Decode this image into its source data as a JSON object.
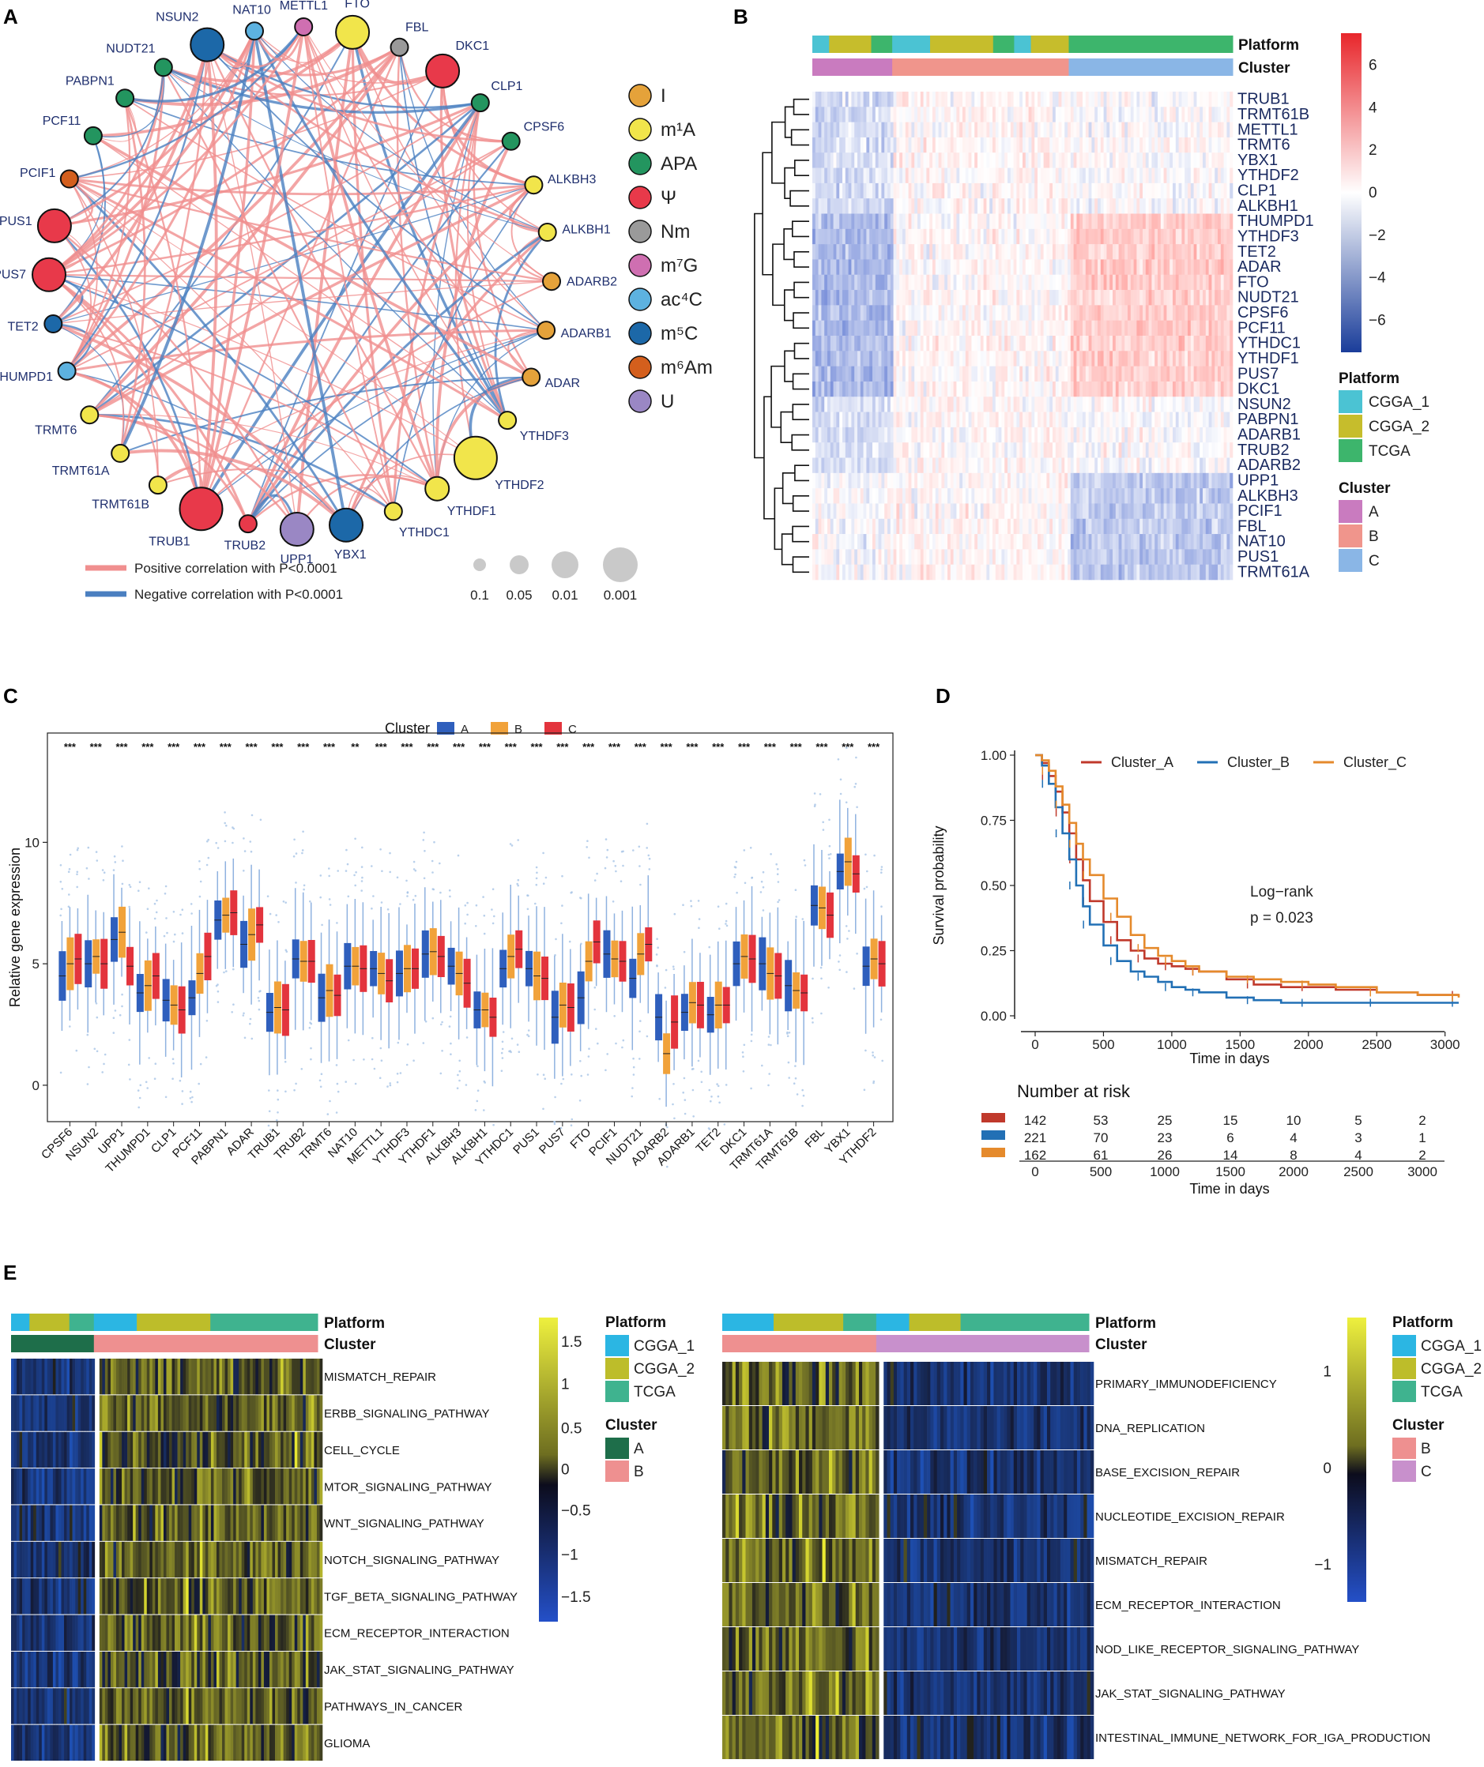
{
  "panels": {
    "A": "A",
    "B": "B",
    "C": "C",
    "D": "D",
    "E": "E"
  },
  "colors": {
    "pos": "#f08f8f",
    "neg": "#4a7fc0",
    "I": "#e5a23a",
    "m1A": "#f1e54b",
    "APA": "#23955f",
    "Psi": "#e8394a",
    "Nm": "#9a9a9a",
    "m7G": "#cf6fb1",
    "ac4C": "#5db2e0",
    "m5C": "#1c68a8",
    "m6Am": "#d45f1d",
    "U": "#9a87c4",
    "CGGA_1": "#4bc3d3",
    "CGGA_2": "#c6bd2c",
    "TCGA": "#3db56c",
    "clusterA": "#c97bbf",
    "clusterB": "#f0958c",
    "clusterC": "#8ab6e6",
    "boxA": "#2f5fbd",
    "boxB": "#f1a23a",
    "boxC": "#e3343d",
    "kmA": "#c0392b",
    "kmB": "#2270b5",
    "kmC": "#e58a2c",
    "E_CGGA_1": "#2bb6e3",
    "E_CGGA_2": "#bdbd2a",
    "E_TCGA": "#3fb38f",
    "E_A": "#1e6e4a",
    "E_B": "#ee9090",
    "E_C": "#c890cc"
  },
  "panelA": {
    "nodes": [
      {
        "name": "FTO",
        "type": "m1A",
        "size": 3
      },
      {
        "name": "FBL",
        "type": "Nm",
        "size": 1
      },
      {
        "name": "DKC1",
        "type": "Psi",
        "size": 3
      },
      {
        "name": "CLP1",
        "type": "APA",
        "size": 1
      },
      {
        "name": "CPSF6",
        "type": "APA",
        "size": 1
      },
      {
        "name": "ALKBH3",
        "type": "m1A",
        "size": 1
      },
      {
        "name": "ALKBH1",
        "type": "m1A",
        "size": 1
      },
      {
        "name": "ADARB2",
        "type": "I",
        "size": 1
      },
      {
        "name": "ADARB1",
        "type": "I",
        "size": 1
      },
      {
        "name": "ADAR",
        "type": "I",
        "size": 1
      },
      {
        "name": "YTHDF3",
        "type": "m1A",
        "size": 1
      },
      {
        "name": "YTHDF2",
        "type": "m1A",
        "size": 4
      },
      {
        "name": "YTHDF1",
        "type": "m1A",
        "size": 2
      },
      {
        "name": "YTHDC1",
        "type": "m1A",
        "size": 1
      },
      {
        "name": "YBX1",
        "type": "m5C",
        "size": 3
      },
      {
        "name": "UPP1",
        "type": "U",
        "size": 3
      },
      {
        "name": "TRUB2",
        "type": "Psi",
        "size": 1
      },
      {
        "name": "TRUB1",
        "type": "Psi",
        "size": 4
      },
      {
        "name": "TRMT61B",
        "type": "m1A",
        "size": 1
      },
      {
        "name": "TRMT61A",
        "type": "m1A",
        "size": 1
      },
      {
        "name": "TRMT6",
        "type": "m1A",
        "size": 1
      },
      {
        "name": "THUMPD1",
        "type": "ac4C",
        "size": 1
      },
      {
        "name": "TET2",
        "type": "m5C",
        "size": 1
      },
      {
        "name": "PUS7",
        "type": "Psi",
        "size": 3
      },
      {
        "name": "PUS1",
        "type": "Psi",
        "size": 3
      },
      {
        "name": "PCIF1",
        "type": "m6Am",
        "size": 1
      },
      {
        "name": "PCF11",
        "type": "APA",
        "size": 1
      },
      {
        "name": "PABPN1",
        "type": "APA",
        "size": 1
      },
      {
        "name": "NUDT21",
        "type": "APA",
        "size": 1
      },
      {
        "name": "NSUN2",
        "type": "m5C",
        "size": 3
      },
      {
        "name": "NAT10",
        "type": "ac4C",
        "size": 1
      },
      {
        "name": "METTL1",
        "type": "m7G",
        "size": 1
      }
    ],
    "legend": [
      {
        "key": "I",
        "label": "I"
      },
      {
        "key": "m1A",
        "label": "m¹A"
      },
      {
        "key": "APA",
        "label": "APA"
      },
      {
        "key": "Psi",
        "label": "Ψ"
      },
      {
        "key": "Nm",
        "label": "Nm"
      },
      {
        "key": "m7G",
        "label": "m⁷G"
      },
      {
        "key": "ac4C",
        "label": "ac⁴C"
      },
      {
        "key": "m5C",
        "label": "m⁵C"
      },
      {
        "key": "m6Am",
        "label": "m⁶Am"
      },
      {
        "key": "U",
        "label": "U"
      }
    ],
    "pos_label": "Positive correlation with P<0.0001",
    "neg_label": "Negative correlation with P<0.0001",
    "size_legend": [
      "0.1",
      "0.05",
      "0.01",
      "0.001"
    ]
  },
  "panelB": {
    "rows": [
      "TRUB1",
      "TRMT61B",
      "METTL1",
      "TRMT6",
      "YBX1",
      "YTHDF2",
      "CLP1",
      "ALKBH1",
      "THUMPD1",
      "YTHDF3",
      "TET2",
      "ADAR",
      "FTO",
      "NUDT21",
      "CPSF6",
      "PCF11",
      "YTHDC1",
      "YTHDF1",
      "PUS7",
      "DKC1",
      "NSUN2",
      "PABPN1",
      "ADARB1",
      "TRUB2",
      "ADARB2",
      "UPP1",
      "ALKBH3",
      "PCIF1",
      "FBL",
      "NAT10",
      "PUS1",
      "TRMT61A"
    ],
    "annot_platform": "Platform",
    "annot_cluster": "Cluster",
    "colorbar_ticks": [
      "6",
      "4",
      "2",
      "0",
      "−2",
      "−4",
      "−6"
    ],
    "legend_platform_title": "Platform",
    "legend_platform": [
      "CGGA_1",
      "CGGA_2",
      "TCGA"
    ],
    "legend_cluster_title": "Cluster",
    "legend_cluster": [
      "A",
      "B",
      "C"
    ]
  },
  "chart_data": [
    {
      "type": "box",
      "panel": "C",
      "title": "",
      "legend_title": "Cluster",
      "legend": [
        "A",
        "B",
        "C"
      ],
      "ylabel": "Relative gene expression",
      "ylim": [
        -1.5,
        14.5
      ],
      "yticks": [
        "0",
        "5",
        "10"
      ],
      "categories": [
        "CPSF6",
        "NSUN2",
        "UPP1",
        "THUMPD1",
        "CLP1",
        "PCF11",
        "PABPN1",
        "ADAR",
        "TRUB1",
        "TRUB2",
        "TRMT6",
        "NAT10",
        "METTL1",
        "YTHDF3",
        "YTHDF1",
        "ALKBH3",
        "ALKBH1",
        "YTHDC1",
        "PUS1",
        "PUS7",
        "FTO",
        "PCIF1",
        "NUDT21",
        "ADARB2",
        "ADARB1",
        "TET2",
        "DKC1",
        "TRMT61A",
        "TRMT61B",
        "FBL",
        "YBX1",
        "YTHDF2"
      ],
      "significance": [
        "***",
        "***",
        "***",
        "***",
        "***",
        "***",
        "***",
        "***",
        "***",
        "***",
        "***",
        "**",
        "***",
        "***",
        "***",
        "***",
        "***",
        "***",
        "***",
        "***",
        "***",
        "***",
        "***",
        "***",
        "***",
        "***",
        "***",
        "***",
        "***",
        "***",
        "***",
        "***"
      ],
      "medians": {
        "A": [
          4.5,
          5.0,
          6.0,
          3.8,
          3.5,
          3.6,
          6.8,
          5.8,
          3.0,
          5.2,
          3.6,
          4.9,
          4.8,
          4.6,
          5.4,
          4.9,
          3.1,
          4.8,
          4.8,
          2.8,
          3.6,
          5.4,
          4.4,
          2.8,
          3.0,
          2.9,
          5.0,
          5.0,
          4.1,
          7.4,
          8.8,
          4.9
        ],
        "B": [
          5.0,
          5.3,
          6.3,
          4.1,
          3.3,
          4.6,
          7.0,
          6.2,
          3.2,
          5.1,
          3.9,
          4.9,
          4.6,
          4.8,
          5.5,
          4.6,
          3.1,
          5.3,
          4.5,
          3.3,
          5.1,
          5.2,
          5.4,
          1.3,
          3.4,
          3.3,
          5.3,
          4.6,
          3.9,
          7.3,
          9.2,
          5.2
        ],
        "C": [
          5.2,
          5.0,
          4.9,
          4.5,
          3.1,
          5.3,
          7.1,
          6.6,
          3.1,
          5.1,
          3.7,
          4.8,
          4.3,
          4.8,
          5.3,
          4.2,
          2.8,
          5.6,
          4.4,
          3.2,
          5.9,
          5.1,
          5.8,
          2.6,
          3.3,
          3.3,
          5.2,
          4.5,
          3.8,
          7.0,
          8.7,
          5.0
        ]
      }
    },
    {
      "type": "line",
      "panel": "D",
      "title": "",
      "xlabel": "Time in days",
      "ylabel": "Survival probability",
      "xlim": [
        0,
        3100
      ],
      "ylim": [
        0,
        1
      ],
      "xticks": [
        "0",
        "500",
        "1000",
        "1500",
        "2000",
        "2500",
        "3000"
      ],
      "yticks": [
        "0.00",
        "0.25",
        "0.50",
        "0.75",
        "1.00"
      ],
      "annotation_lines": [
        "Log−rank",
        "p = 0.023"
      ],
      "series": [
        {
          "name": "Cluster_A",
          "x": [
            0,
            50,
            100,
            150,
            200,
            250,
            300,
            350,
            400,
            500,
            600,
            700,
            800,
            900,
            1000,
            1100,
            1200,
            1400,
            1600,
            1800,
            2000,
            2200,
            2500,
            2800,
            3100
          ],
          "y": [
            1.0,
            0.97,
            0.92,
            0.86,
            0.78,
            0.7,
            0.6,
            0.52,
            0.44,
            0.36,
            0.29,
            0.25,
            0.22,
            0.2,
            0.19,
            0.18,
            0.17,
            0.14,
            0.12,
            0.11,
            0.11,
            0.1,
            0.09,
            0.08,
            0.08
          ]
        },
        {
          "name": "Cluster_B",
          "x": [
            0,
            50,
            100,
            150,
            200,
            250,
            300,
            350,
            400,
            500,
            600,
            700,
            800,
            900,
            1000,
            1100,
            1200,
            1400,
            1600,
            1800,
            2000,
            2200,
            2500,
            2800,
            3100
          ],
          "y": [
            1.0,
            0.96,
            0.89,
            0.8,
            0.7,
            0.6,
            0.5,
            0.42,
            0.35,
            0.27,
            0.21,
            0.17,
            0.15,
            0.13,
            0.11,
            0.1,
            0.09,
            0.07,
            0.06,
            0.05,
            0.05,
            0.05,
            0.05,
            0.05,
            0.05
          ]
        },
        {
          "name": "Cluster_C",
          "x": [
            0,
            50,
            100,
            150,
            200,
            250,
            300,
            350,
            400,
            500,
            600,
            700,
            800,
            900,
            1000,
            1100,
            1200,
            1400,
            1600,
            1800,
            2000,
            2200,
            2500,
            2800,
            3100
          ],
          "y": [
            1.0,
            0.98,
            0.94,
            0.88,
            0.81,
            0.74,
            0.66,
            0.6,
            0.54,
            0.45,
            0.38,
            0.31,
            0.26,
            0.23,
            0.21,
            0.19,
            0.17,
            0.15,
            0.14,
            0.13,
            0.12,
            0.11,
            0.09,
            0.08,
            0.07
          ]
        }
      ],
      "risk_table": {
        "title": "Number at risk",
        "times": [
          "0",
          "500",
          "1000",
          "1500",
          "2000",
          "2500",
          "3000"
        ],
        "rows": [
          {
            "name": "Cluster_A",
            "values": [
              "142",
              "53",
              "25",
              "15",
              "10",
              "5",
              "2"
            ]
          },
          {
            "name": "Cluster_B",
            "values": [
              "221",
              "70",
              "23",
              "6",
              "4",
              "3",
              "1"
            ]
          },
          {
            "name": "Cluster_C",
            "values": [
              "162",
              "61",
              "26",
              "14",
              "8",
              "4",
              "2"
            ]
          }
        ],
        "xlabel": "Time in days"
      }
    },
    {
      "type": "heatmap",
      "panel": "E-left",
      "rows": [
        "MISMATCH_REPAIR",
        "ERBB_SIGNALING_PATHWAY",
        "CELL_CYCLE",
        "MTOR_SIGNALING_PATHWAY",
        "WNT_SIGNALING_PATHWAY",
        "NOTCH_SIGNALING_PATHWAY",
        "TGF_BETA_SIGNALING_PATHWAY",
        "ECM_RECEPTOR_INTERACTION",
        "JAK_STAT_SIGNALING_PATHWAY",
        "PATHWAYS_IN_CANCER",
        "GLIOMA"
      ],
      "annot_platform": "Platform",
      "annot_cluster": "Cluster",
      "colorbar_ticks": [
        "1.5",
        "1",
        "0.5",
        "0",
        "−0.5",
        "−1",
        "−1.5"
      ],
      "legend_platform_title": "Platform",
      "legend_platform": [
        "CGGA_1",
        "CGGA_2",
        "TCGA"
      ],
      "legend_cluster_title": "Cluster",
      "legend_cluster": [
        "A",
        "B"
      ]
    },
    {
      "type": "heatmap",
      "panel": "E-right",
      "rows": [
        "PRIMARY_IMMUNODEFICIENCY",
        "DNA_REPLICATION",
        "BASE_EXCISION_REPAIR",
        "NUCLEOTIDE_EXCISION_REPAIR",
        "MISMATCH_REPAIR",
        "ECM_RECEPTOR_INTERACTION",
        "NOD_LIKE_RECEPTOR_SIGNALING_PATHWAY",
        "JAK_STAT_SIGNALING_PATHWAY",
        "INTESTINAL_IMMUNE_NETWORK_FOR_IGA_PRODUCTION"
      ],
      "annot_platform": "Platform",
      "annot_cluster": "Cluster",
      "colorbar_ticks": [
        "1",
        "0",
        "−1"
      ],
      "legend_platform_title": "Platform",
      "legend_platform": [
        "CGGA_1",
        "CGGA_2",
        "TCGA"
      ],
      "legend_cluster_title": "Cluster",
      "legend_cluster": [
        "B",
        "C"
      ]
    }
  ]
}
